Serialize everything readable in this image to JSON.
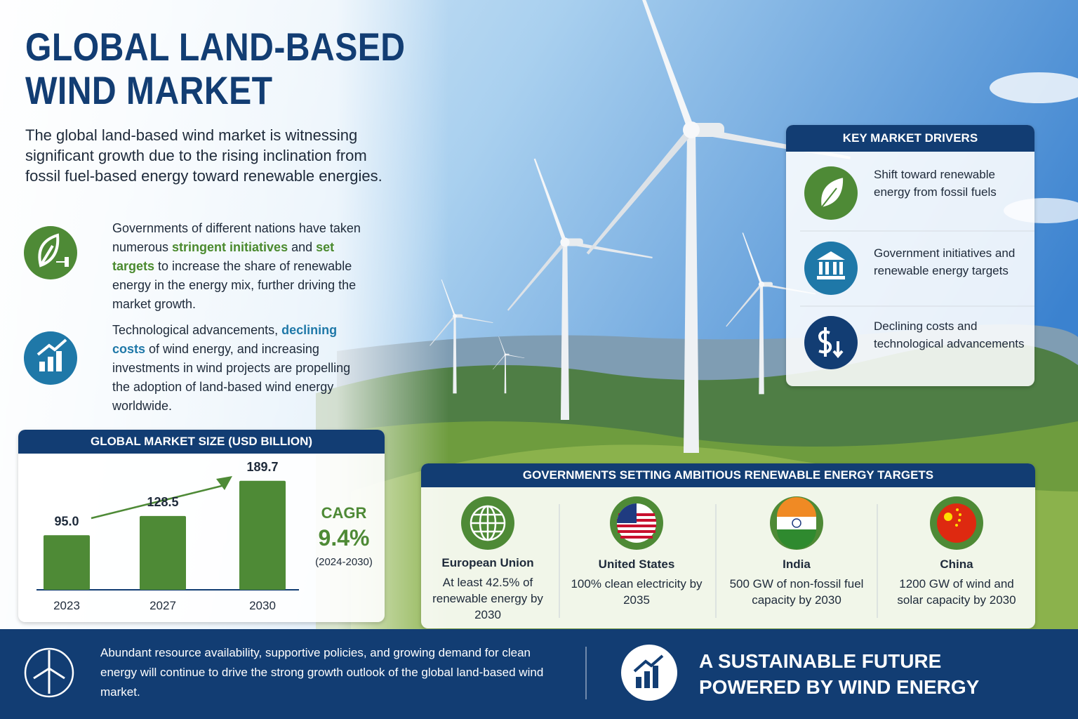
{
  "title_lines": [
    "GLOBAL LAND-BASED",
    "WIND MARKET"
  ],
  "intro": "The global land-based wind market is witnessing significant growth due to the rising inclination from fossil fuel-based energy toward renewable energies.",
  "highlights": [
    {
      "parts": [
        {
          "text": "Governments of different nations have taken numerous "
        },
        {
          "text": "stringent initiatives",
          "color": "#4a8a2e"
        },
        {
          "text": " and "
        },
        {
          "text": "set targets",
          "color": "#4a8a2e"
        },
        {
          "text": " to increase the share of renewable energy in the energy mix, further driving the market growth."
        }
      ]
    },
    {
      "parts": [
        {
          "text": "Technological advancements, "
        },
        {
          "text": "declining costs",
          "color": "#1f78a8"
        },
        {
          "text": " of wind energy, and increasing investments in wind projects are propelling the adoption of land-based wind energy worldwide."
        }
      ]
    }
  ],
  "chart_data": {
    "type": "bar",
    "title": "GLOBAL MARKET SIZE (USD BILLION)",
    "categories": [
      "2023",
      "2027",
      "2030"
    ],
    "values": [
      95.0,
      128.5,
      189.7
    ],
    "value_labels": [
      "95.0",
      "128.5",
      "189.7"
    ],
    "color": "#4e8a36",
    "ylim": [
      0,
      220
    ]
  },
  "cagr": {
    "label": "CAGR",
    "value": "9.4%",
    "period": "(2024-2030)"
  },
  "key_drivers": {
    "title": "KEY MARKET DRIVERS",
    "items": [
      "Shift toward renewable energy from fossil fuels",
      "Government initiatives and renewable energy targets",
      "Declining costs and technological advancements"
    ]
  },
  "targets": {
    "title": "GOVERNMENTS SETTING AMBITIOUS RENEWABLE ENERGY TARGETS",
    "regions": [
      {
        "name": "European Union",
        "text": "At least 42.5% of renewable energy by 2030"
      },
      {
        "name": "United States",
        "text": "100% clean electricity by 2035"
      },
      {
        "name": "India",
        "text": "500 GW of non-fossil fuel capacity by 2030"
      },
      {
        "name": "China",
        "text": "1200 GW of wind and solar capacity by 2030"
      }
    ]
  },
  "footer": {
    "text": "Abundant resource availability, supportive policies, and growing demand for clean energy will continue to drive the strong growth outlook of the global land-based wind market.",
    "slogan_lines": [
      "A SUSTAINABLE FUTURE",
      "POWERED BY WIND ENERGY"
    ]
  }
}
